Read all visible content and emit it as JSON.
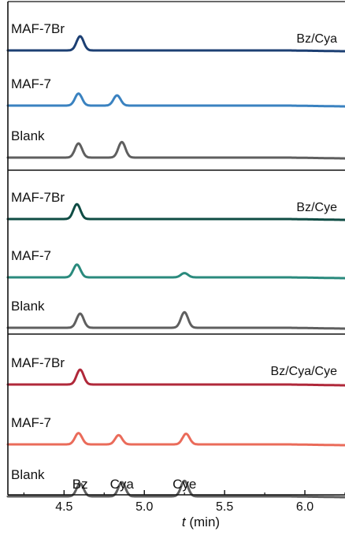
{
  "chart_data": {
    "type": "line",
    "description_axes": "stacked chromatogram panels",
    "x_axis": {
      "label": "t (min)",
      "label_italic_part": "t",
      "label_unit_part": " (min)",
      "xlim": [
        4.15,
        6.25
      ],
      "ticks": [
        4.5,
        5.0,
        5.5,
        6.0
      ],
      "tick_labels": [
        "4.5",
        "5.0",
        "5.5",
        "6.0"
      ],
      "grid": false
    },
    "peak_labels": [
      {
        "text": "Bz",
        "x": 4.6
      },
      {
        "text": "Cya",
        "x": 4.86
      },
      {
        "text": "Cye",
        "x": 5.25
      }
    ],
    "panels": [
      {
        "tag": "Bz/Cya",
        "series": [
          {
            "name": "MAF-7Br",
            "color": "#1c3f73",
            "peaks": [
              {
                "x": 4.6,
                "h": 1.0
              }
            ]
          },
          {
            "name": "MAF-7",
            "color": "#3a82c0",
            "peaks": [
              {
                "x": 4.59,
                "h": 0.85
              },
              {
                "x": 4.83,
                "h": 0.72
              }
            ]
          },
          {
            "name": "Blank",
            "color": "#5f5f5f",
            "peaks": [
              {
                "x": 4.59,
                "h": 1.0
              },
              {
                "x": 4.86,
                "h": 1.1
              }
            ]
          }
        ]
      },
      {
        "tag": "Bz/Cye",
        "series": [
          {
            "name": "MAF-7Br",
            "color": "#0f4c44",
            "peaks": [
              {
                "x": 4.58,
                "h": 1.05
              }
            ]
          },
          {
            "name": "MAF-7",
            "color": "#2a8a7d",
            "peaks": [
              {
                "x": 4.58,
                "h": 0.9
              },
              {
                "x": 5.25,
                "h": 0.3
              }
            ]
          },
          {
            "name": "Blank",
            "color": "#5f5f5f",
            "peaks": [
              {
                "x": 4.6,
                "h": 1.0
              },
              {
                "x": 5.25,
                "h": 1.1
              }
            ]
          }
        ]
      },
      {
        "tag": "Bz/Cya/Cye",
        "series": [
          {
            "name": "MAF-7Br",
            "color": "#b0283a",
            "peaks": [
              {
                "x": 4.6,
                "h": 1.05
              }
            ]
          },
          {
            "name": "MAF-7",
            "color": "#ea6b5a",
            "peaks": [
              {
                "x": 4.59,
                "h": 0.8
              },
              {
                "x": 4.84,
                "h": 0.65
              },
              {
                "x": 5.26,
                "h": 0.75
              }
            ]
          },
          {
            "name": "Blank",
            "color": "#5f5f5f",
            "peaks": [
              {
                "x": 4.6,
                "h": 0.9
              },
              {
                "x": 4.86,
                "h": 1.0
              },
              {
                "x": 5.25,
                "h": 1.1
              }
            ]
          }
        ]
      }
    ]
  }
}
